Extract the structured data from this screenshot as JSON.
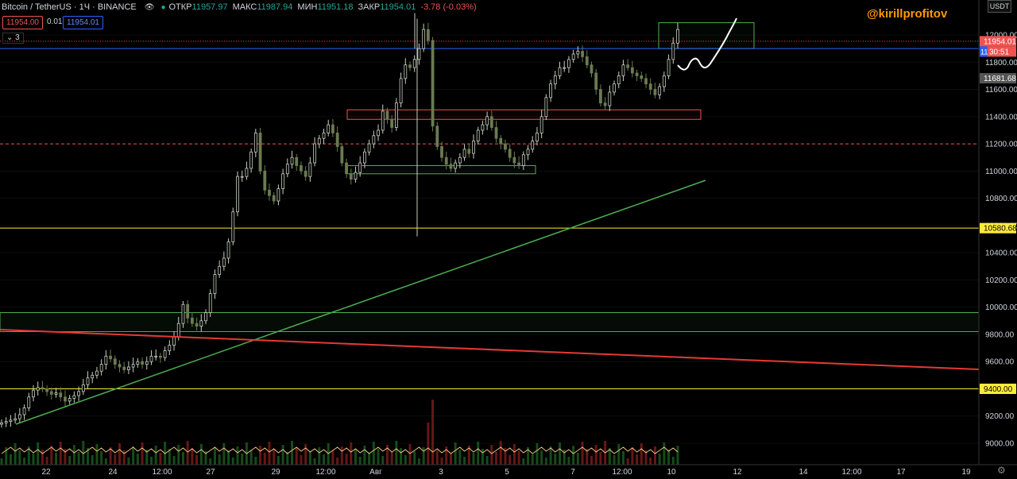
{
  "header": {
    "symbol": "Bitcoin / TetherUS · 1Ч · BINANCE",
    "open_label": "ОТКР",
    "open": "11957.97",
    "high_label": "МАКС",
    "high": "11987.94",
    "low_label": "МИН",
    "low": "11951.18",
    "close_label": "ЗАКР",
    "close": "11954.01",
    "change": "-3.78 (-0.03%)",
    "bid": "11954.00",
    "spread": "0.01",
    "ask": "11954.01",
    "indicator_count": "3"
  },
  "watermark": "@kirillprofitov",
  "currency": "USDT",
  "colors": {
    "background": "#000000",
    "up": "#26a69a",
    "down": "#ef5350",
    "price_label": "#ef5350",
    "level_label": "#ffeb3b",
    "trendline_green": "#4caf50",
    "trendline_red": "#e53935"
  },
  "price_labels": {
    "last": "11954.01",
    "countdown": "30:51",
    "blue_line": "11",
    "gray": "11681.68",
    "yellow_high": "10580.68",
    "yellow_low": "9400.00"
  },
  "chart_data": {
    "type": "candlestick",
    "title": "Bitcoin / TetherUS · 1Ч · BINANCE",
    "y_ticks": [
      9000,
      9200,
      9400,
      9600,
      9800,
      10000,
      10200,
      10400,
      10600,
      10800,
      11000,
      11200,
      11400,
      11600,
      11800,
      12000
    ],
    "y_tick_labels": [
      "9000.00",
      "9200.00",
      "9400.00",
      "9600.00",
      "9800.00",
      "10000.00",
      "10200.00",
      "10400.00",
      "10600.00",
      "10800.00",
      "11000.00",
      "11200.00",
      "11400.00",
      "11600.00",
      "11800.00",
      "12000.00"
    ],
    "ylim": [
      8850,
      12300
    ],
    "x_ticks": [
      "22",
      "24",
      "12:00",
      "27",
      "29",
      "12:00",
      "Авг",
      "3",
      "5",
      "7",
      "12:00",
      "10",
      "12",
      "14",
      "12:00",
      "17",
      "19"
    ],
    "horizontal_levels": [
      {
        "price": 10580.68,
        "color": "#ffeb3b"
      },
      {
        "price": 9400.0,
        "color": "#ffeb3b"
      },
      {
        "price": 11200.0,
        "color": "#ef5350",
        "style": "dashed"
      },
      {
        "price": 11954.01,
        "color": "#ef5350",
        "style": "dotted"
      },
      {
        "price": 11900.0,
        "color": "#2962ff"
      }
    ],
    "zones": [
      {
        "x_from": "29 12:00",
        "x_to": "5 12:00",
        "y_from": 11380,
        "y_to": 11450,
        "color": "#ef5350"
      },
      {
        "x_from": "29 12:00",
        "x_to": "5 12:00",
        "y_from": 10980,
        "y_to": 11040,
        "color": "#4caf50"
      },
      {
        "x_from": "9 12:00",
        "x_to": "11",
        "y_from": 11900,
        "y_to": 12090,
        "color": "#4caf50"
      },
      {
        "x_from": "21",
        "x_to": "19",
        "y_from": 9820,
        "y_to": 9960,
        "color": "#4caf50"
      }
    ],
    "candles_close": [
      9150,
      9160,
      9170,
      9180,
      9210,
      9260,
      9340,
      9390,
      9410,
      9400,
      9380,
      9360,
      9370,
      9340,
      9310,
      9330,
      9350,
      9380,
      9430,
      9480,
      9500,
      9530,
      9580,
      9640,
      9620,
      9580,
      9560,
      9540,
      9560,
      9580,
      9600,
      9580,
      9600,
      9640,
      9640,
      9630,
      9680,
      9720,
      9780,
      9880,
      10020,
      9920,
      9880,
      9860,
      9900,
      9960,
      10100,
      10240,
      10300,
      10360,
      10480,
      10700,
      10960,
      10960,
      11020,
      11140,
      11280,
      11000,
      10860,
      10820,
      10780,
      10870,
      10980,
      11050,
      11100,
      11040,
      11000,
      10960,
      11060,
      11200,
      11240,
      11280,
      11340,
      11280,
      11180,
      11060,
      10980,
      10940,
      10990,
      11060,
      11140,
      11200,
      11260,
      11300,
      11440,
      11380,
      11320,
      11500,
      11680,
      11780,
      11760,
      11820,
      11900,
      12040,
      11960,
      11330,
      11180,
      11100,
      11050,
      11020,
      11060,
      11100,
      11160,
      11130,
      11220,
      11300,
      11340,
      11400,
      11320,
      11240,
      11200,
      11160,
      11100,
      11060,
      11040,
      11120,
      11160,
      11220,
      11280,
      11400,
      11540,
      11640,
      11700,
      11760,
      11760,
      11820,
      11860,
      11880,
      11840,
      11780,
      11720,
      11600,
      11500,
      11480,
      11580,
      11640,
      11700,
      11780,
      11760,
      11720,
      11700,
      11680,
      11640,
      11600,
      11560,
      11620,
      11700,
      11820,
      11940,
      12040
    ]
  }
}
